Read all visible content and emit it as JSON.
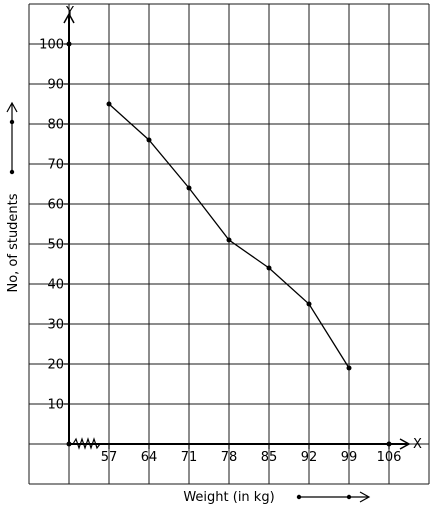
{
  "chart_data": {
    "type": "line",
    "title": "",
    "xlabel": "Weight (in kg)",
    "ylabel": "No, of students",
    "x_axis_letter": "X",
    "y_axis_letter": "Y",
    "x_tick_labels": [
      "57",
      "64",
      "71",
      "78",
      "85",
      "92",
      "99",
      "106"
    ],
    "y_tick_labels": [
      "10",
      "20",
      "30",
      "40",
      "50",
      "60",
      "70",
      "80",
      "90",
      "100"
    ],
    "x": [
      57,
      64,
      71,
      78,
      85,
      92,
      99
    ],
    "y": [
      85,
      76,
      64,
      51,
      44,
      35,
      19
    ],
    "ylim": [
      0,
      100
    ],
    "x_axis_break": true,
    "grid": true
  }
}
